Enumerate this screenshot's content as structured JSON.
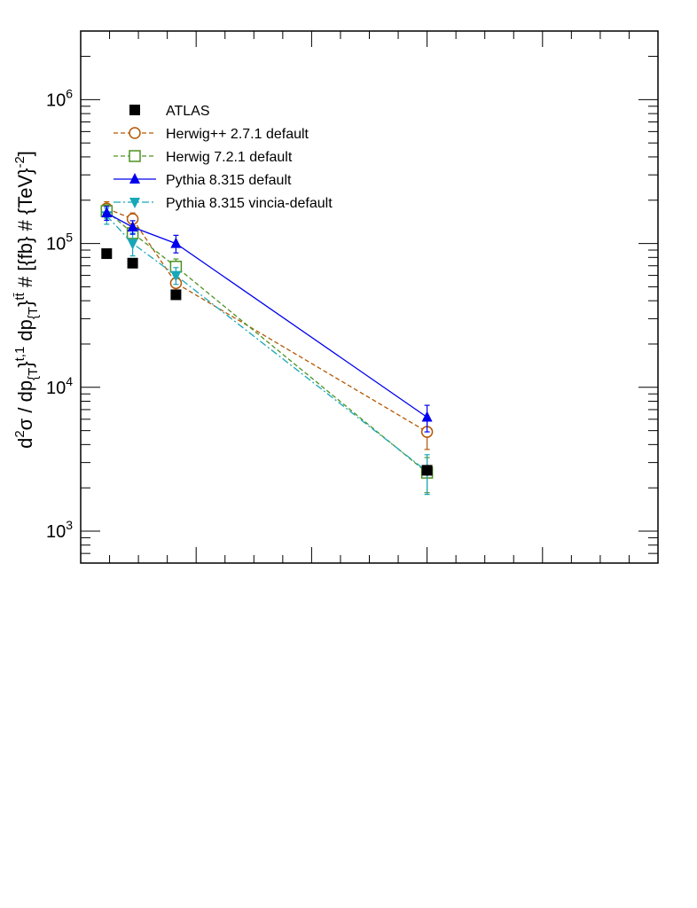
{
  "chart_data": {
    "type": "line",
    "title": "",
    "xlabel": "",
    "ylabel": "d^{2}σ / dp_{T}^{t,1} dp_{T}^{tt̄} # [{fb} # {TeV}^{-2}]",
    "y_scale": "log",
    "ylim": [
      600,
      3000000
    ],
    "xlim": [
      0,
      1000
    ],
    "y_ticks": [
      "10^3",
      "10^4",
      "10^5",
      "10^6"
    ],
    "x_tick_labels": [],
    "grid": false,
    "legend_position": "top-left",
    "series": [
      {
        "name": "ATLAS",
        "color": "#000000",
        "marker": "filled-square",
        "line": "none",
        "x": [
          45,
          90,
          165,
          600
        ],
        "y": [
          85000,
          73000,
          44000,
          2650
        ],
        "yerr": [
          0,
          0,
          0,
          0
        ]
      },
      {
        "name": "Herwig++ 2.7.1 default",
        "color": "#b35806",
        "marker": "open-circle",
        "line": "dashed",
        "x": [
          45,
          90,
          165,
          600
        ],
        "y": [
          175000,
          148000,
          53000,
          4900
        ],
        "yerr": [
          20000,
          15000,
          6000,
          1200
        ]
      },
      {
        "name": "Herwig 7.2.1 default",
        "color": "#4d9221",
        "marker": "open-square",
        "line": "dashed",
        "x": [
          45,
          90,
          165,
          600
        ],
        "y": [
          168000,
          118000,
          69000,
          2550
        ],
        "yerr": [
          18000,
          15000,
          9000,
          700
        ]
      },
      {
        "name": "Pythia 8.315 default",
        "color": "#0000ee",
        "marker": "filled-triangle-up",
        "line": "solid",
        "x": [
          45,
          90,
          165,
          600
        ],
        "y": [
          163000,
          130000,
          100000,
          6200
        ],
        "yerr": [
          18000,
          14000,
          14000,
          1300
        ]
      },
      {
        "name": "Pythia 8.315 vincia-default",
        "color": "#17a7b8",
        "marker": "filled-triangle-down",
        "line": "dash-dot",
        "x": [
          45,
          90,
          165,
          600
        ],
        "y": [
          156000,
          100000,
          60000,
          2600
        ],
        "yerr": [
          20000,
          18000,
          8000,
          800
        ]
      }
    ]
  }
}
